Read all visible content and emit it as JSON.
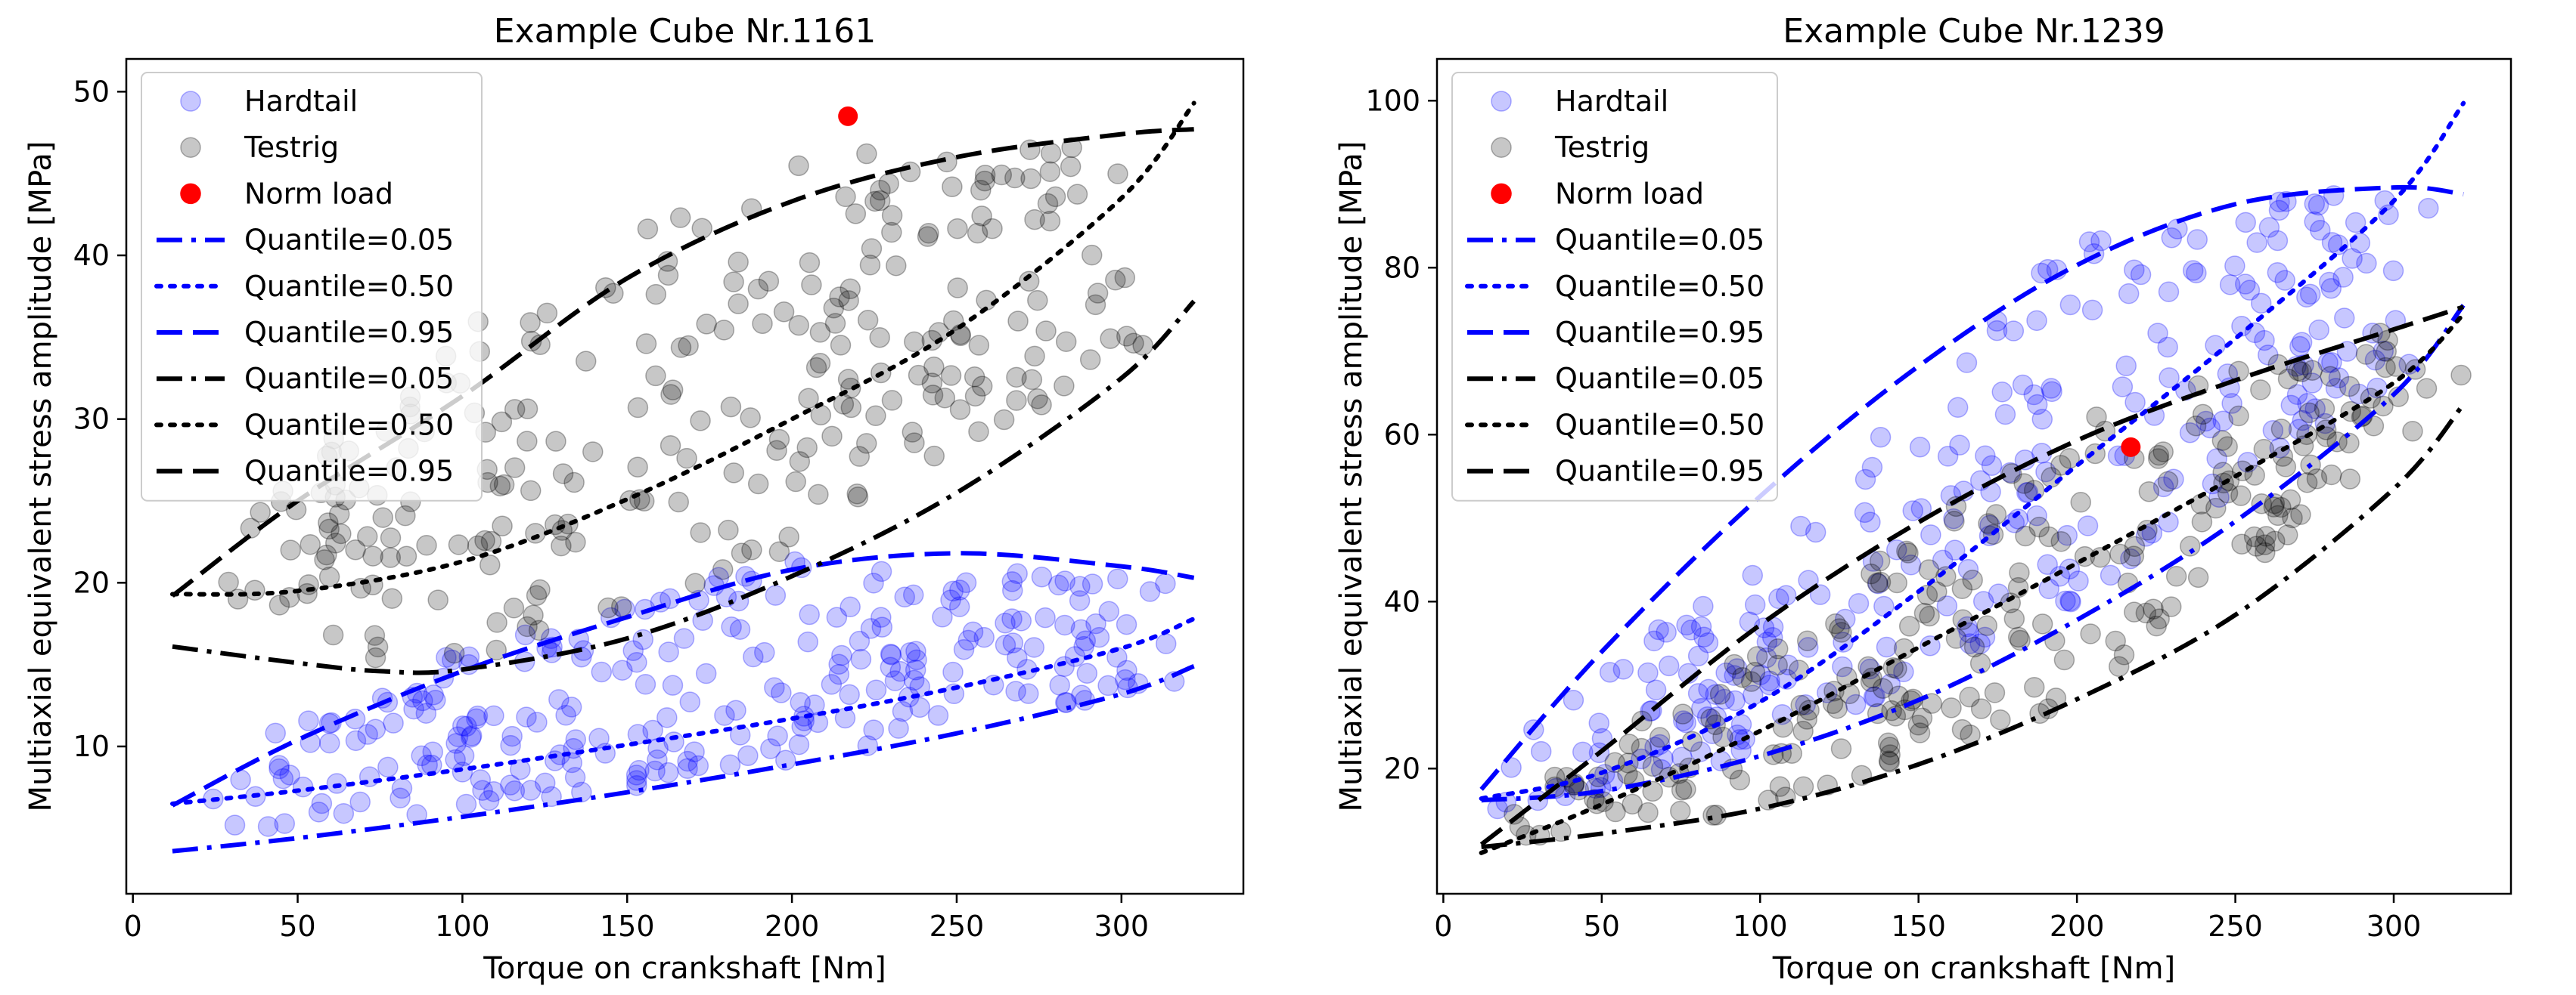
{
  "chart_data": [
    {
      "type": "scatter",
      "title": "Example Cube Nr.1161",
      "xlabel": "Torque on crankshaft [Nm]",
      "ylabel": "Multiaxial equivalent stress amplitude [MPa]",
      "xlim": [
        -2,
        337
      ],
      "ylim": [
        1,
        52
      ],
      "xticks": [
        0,
        50,
        100,
        150,
        200,
        250,
        300
      ],
      "yticks": [
        10,
        20,
        30,
        40,
        50
      ],
      "grid": false,
      "legend_position": "upper-left",
      "scatter_series": [
        {
          "name": "Hardtail",
          "color": "#0000ff",
          "alpha": 0.22,
          "n": 260,
          "x_range": [
            12,
            322
          ],
          "lower_curve": [
            [
              10,
              4.5
            ],
            [
              100,
              6
            ],
            [
              200,
              9
            ],
            [
              320,
              14
            ]
          ],
          "upper_curve": [
            [
              10,
              8
            ],
            [
              100,
              16
            ],
            [
              200,
              22
            ],
            [
              320,
              20
            ]
          ]
        },
        {
          "name": "Testrig",
          "color": "#000000",
          "alpha": 0.22,
          "n": 270,
          "x_range": [
            12,
            322
          ],
          "lower_curve": [
            [
              10,
              16
            ],
            [
              100,
              15
            ],
            [
              200,
              22
            ],
            [
              320,
              36
            ]
          ],
          "upper_curve": [
            [
              10,
              20
            ],
            [
              100,
              36
            ],
            [
              200,
              46
            ],
            [
              320,
              48
            ]
          ]
        }
      ],
      "norm_load": {
        "name": "Norm load",
        "color": "#ff0000",
        "x": 217,
        "y": 48.5
      },
      "quantile_lines": [
        {
          "name": "Quantile=0.05",
          "color": "#0000ff",
          "style": "dashdot",
          "x": [
            12,
            50,
            100,
            150,
            200,
            250,
            300,
            322
          ],
          "y": [
            3.6,
            4.4,
            5.7,
            7.2,
            8.9,
            10.8,
            13.2,
            14.9
          ]
        },
        {
          "name": "Quantile=0.50",
          "color": "#0000ff",
          "style": "dotted",
          "x": [
            12,
            50,
            100,
            150,
            200,
            250,
            300,
            322
          ],
          "y": [
            6.5,
            7.3,
            8.6,
            10.1,
            11.7,
            13.6,
            16.0,
            17.8
          ]
        },
        {
          "name": "Quantile=0.95",
          "color": "#0000ff",
          "style": "dashed",
          "x": [
            12,
            50,
            100,
            150,
            200,
            250,
            300,
            322
          ],
          "y": [
            6.4,
            10.4,
            14.6,
            17.9,
            20.8,
            21.8,
            21.0,
            20.3
          ]
        },
        {
          "name": "Quantile=0.05",
          "color": "#000000",
          "style": "dashdot",
          "x": [
            12,
            50,
            75,
            100,
            150,
            200,
            250,
            300,
            322
          ],
          "y": [
            16.1,
            15.1,
            14.6,
            14.7,
            16.6,
            20.4,
            25.5,
            32.5,
            37.2
          ]
        },
        {
          "name": "Quantile=0.50",
          "color": "#000000",
          "style": "dotted",
          "x": [
            12,
            50,
            100,
            150,
            200,
            250,
            300,
            322
          ],
          "y": [
            19.3,
            19.5,
            21.3,
            25.1,
            30.0,
            35.5,
            43.5,
            49.3
          ]
        },
        {
          "name": "Quantile=0.95",
          "color": "#000000",
          "style": "dashed",
          "x": [
            12,
            50,
            100,
            150,
            200,
            250,
            300,
            322
          ],
          "y": [
            19.2,
            25.0,
            31.4,
            38.6,
            43.3,
            46.0,
            47.4,
            47.7
          ]
        }
      ]
    },
    {
      "type": "scatter",
      "title": "Example Cube Nr.1239",
      "xlabel": "Torque on crankshaft [Nm]",
      "ylabel": "Multiaxial equivalent stress amplitude [MPa]",
      "xlim": [
        -2,
        337
      ],
      "ylim": [
        5,
        105
      ],
      "xticks": [
        0,
        50,
        100,
        150,
        200,
        250,
        300
      ],
      "yticks": [
        20,
        40,
        60,
        80,
        100
      ],
      "grid": false,
      "legend_position": "upper-left",
      "scatter_series": [
        {
          "name": "Hardtail",
          "color": "#0000ff",
          "alpha": 0.22,
          "n": 280,
          "x_range": [
            12,
            322
          ],
          "lower_curve": [
            [
              10,
              14
            ],
            [
              100,
              22
            ],
            [
              200,
              40
            ],
            [
              320,
              72
            ]
          ],
          "upper_curve": [
            [
              10,
              20
            ],
            [
              100,
              46
            ],
            [
              200,
              84
            ],
            [
              320,
              92
            ]
          ]
        },
        {
          "name": "Testrig",
          "color": "#000000",
          "alpha": 0.22,
          "n": 260,
          "x_range": [
            12,
            322
          ],
          "lower_curve": [
            [
              10,
              11
            ],
            [
              100,
              15
            ],
            [
              200,
              28
            ],
            [
              320,
              64
            ]
          ],
          "upper_curve": [
            [
              10,
              13
            ],
            [
              100,
              35
            ],
            [
              200,
              62
            ],
            [
              320,
              76
            ]
          ]
        }
      ],
      "norm_load": {
        "name": "Norm load",
        "color": "#ff0000",
        "x": 217,
        "y": 58.5
      },
      "quantile_lines": [
        {
          "name": "Quantile=0.05",
          "color": "#0000ff",
          "style": "dashdot",
          "x": [
            12,
            50,
            100,
            150,
            200,
            250,
            300,
            322
          ],
          "y": [
            16.2,
            17.3,
            21.5,
            28.2,
            37.8,
            49.6,
            64.8,
            75.5
          ]
        },
        {
          "name": "Quantile=0.50",
          "color": "#0000ff",
          "style": "dotted",
          "x": [
            12,
            50,
            100,
            150,
            200,
            250,
            300,
            322
          ],
          "y": [
            16.4,
            19.5,
            28.0,
            41.2,
            56.3,
            71.5,
            88.0,
            99.7
          ]
        },
        {
          "name": "Quantile=0.95",
          "color": "#0000ff",
          "style": "dashed",
          "x": [
            12,
            50,
            100,
            150,
            200,
            250,
            300,
            322
          ],
          "y": [
            17.5,
            34.0,
            52.6,
            68.2,
            80.3,
            87.6,
            89.6,
            88.8
          ]
        },
        {
          "name": "Quantile=0.05",
          "color": "#000000",
          "style": "dashdot",
          "x": [
            12,
            50,
            100,
            150,
            200,
            250,
            300,
            322
          ],
          "y": [
            10.6,
            12.2,
            15.2,
            20.5,
            28.3,
            38.4,
            53.5,
            63.6
          ]
        },
        {
          "name": "Quantile=0.50",
          "color": "#000000",
          "style": "dotted",
          "x": [
            12,
            50,
            100,
            150,
            200,
            250,
            300,
            322
          ],
          "y": [
            9.9,
            15.7,
            24.5,
            34.5,
            44.6,
            55.0,
            66.2,
            74.4
          ]
        },
        {
          "name": "Quantile=0.95",
          "color": "#000000",
          "style": "dashed",
          "x": [
            12,
            50,
            100,
            150,
            200,
            250,
            300,
            322
          ],
          "y": [
            10.9,
            22.1,
            37.2,
            49.5,
            59.3,
            66.5,
            72.6,
            75.3
          ]
        }
      ]
    }
  ]
}
